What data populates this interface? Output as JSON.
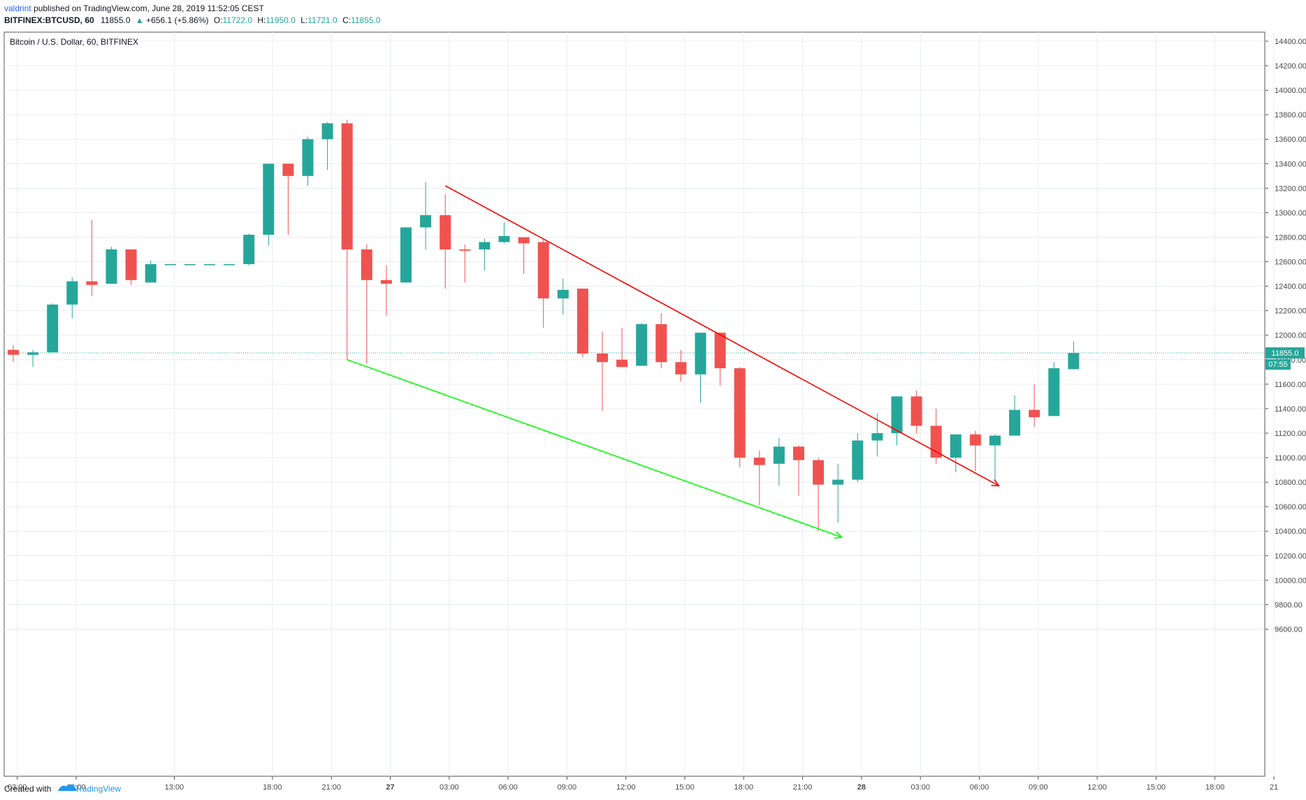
{
  "header": {
    "publisher": "valdrint",
    "published_text": " published on TradingView.com, June 28, 2019 11:52:05 CEST",
    "symbol": "BITFINEX:BTCUSD, 60",
    "last": "11855.0",
    "arrow": "▲",
    "change": "+656.1 (+5.86%)",
    "o_label": "O:",
    "o_value": "11722.0",
    "h_label": "H:",
    "h_value": "11950.0",
    "l_label": "L:",
    "l_value": "11721.0",
    "c_label": "C:",
    "c_value": "11855.0"
  },
  "footer": {
    "created_with": "Created with",
    "brand": "TradingView"
  },
  "colors": {
    "up": "#26a69a",
    "down": "#ef5350",
    "grid": "#e9eef2",
    "price_tag": "#26a69a",
    "red_line": "#ff0000",
    "green_line": "#00ff00",
    "text": "#131722",
    "axis_text": "#4a4a4a",
    "border": "#50535e"
  },
  "chart_data": {
    "type": "candlestick",
    "title": "Bitcoin / U.S. Dollar, 60, BITFINEX",
    "ylim": [
      9500,
      14500
    ],
    "y_ticks": [
      9600,
      9800,
      10000,
      10200,
      10400,
      10600,
      10800,
      11000,
      11200,
      11400,
      11600,
      11800,
      12000,
      12200,
      12400,
      12600,
      12800,
      13000,
      13200,
      13400,
      13600,
      13800,
      14000,
      14200,
      14400
    ],
    "x_ticks": [
      {
        "slot": 0.2,
        "label": "03:00"
      },
      {
        "slot": 3.2,
        "label": "06:00"
      },
      {
        "slot": 8.2,
        "label": "13:00"
      },
      {
        "slot": 13.2,
        "label": "18:00"
      },
      {
        "slot": 16.2,
        "label": "21:00"
      },
      {
        "slot": 19.2,
        "label": "27"
      },
      {
        "slot": 22.2,
        "label": "03:00"
      },
      {
        "slot": 25.2,
        "label": "06:00"
      },
      {
        "slot": 28.2,
        "label": "09:00"
      },
      {
        "slot": 31.2,
        "label": "12:00"
      },
      {
        "slot": 34.2,
        "label": "15:00"
      },
      {
        "slot": 37.2,
        "label": "18:00"
      },
      {
        "slot": 40.2,
        "label": "21:00"
      },
      {
        "slot": 43.2,
        "label": "28"
      },
      {
        "slot": 46.2,
        "label": "03:00"
      },
      {
        "slot": 49.2,
        "label": "06:00"
      },
      {
        "slot": 52.2,
        "label": "09:00"
      },
      {
        "slot": 55.2,
        "label": "12:00"
      },
      {
        "slot": 58.2,
        "label": "15:00"
      },
      {
        "slot": 61.2,
        "label": "18:00"
      },
      {
        "slot": 64.2,
        "label": "21"
      }
    ],
    "candles": [
      {
        "slot": 0,
        "o": 11880,
        "h": 11920,
        "l": 11780,
        "c": 11840
      },
      {
        "slot": 1,
        "o": 11840,
        "h": 11880,
        "l": 11740,
        "c": 11860
      },
      {
        "slot": 2,
        "o": 11860,
        "h": 12260,
        "l": 11860,
        "c": 12250
      },
      {
        "slot": 3,
        "o": 12250,
        "h": 12470,
        "l": 12140,
        "c": 12440
      },
      {
        "slot": 4,
        "o": 12440,
        "h": 12940,
        "l": 12320,
        "c": 12410
      },
      {
        "slot": 5,
        "o": 12420,
        "h": 12720,
        "l": 12420,
        "c": 12700
      },
      {
        "slot": 6,
        "o": 12700,
        "h": 12700,
        "l": 12410,
        "c": 12450
      },
      {
        "slot": 7,
        "o": 12430,
        "h": 12610,
        "l": 12430,
        "c": 12580
      },
      {
        "slot": 8,
        "o": 12580,
        "h": 12580,
        "l": 12580,
        "c": 12580
      },
      {
        "slot": 9,
        "o": 12580,
        "h": 12580,
        "l": 12580,
        "c": 12580
      },
      {
        "slot": 10,
        "o": 12580,
        "h": 12580,
        "l": 12580,
        "c": 12580
      },
      {
        "slot": 11,
        "o": 12580,
        "h": 12580,
        "l": 12580,
        "c": 12580
      },
      {
        "slot": 12,
        "o": 12580,
        "h": 12830,
        "l": 12570,
        "c": 12820
      },
      {
        "slot": 13,
        "o": 12820,
        "h": 13400,
        "l": 12730,
        "c": 13400
      },
      {
        "slot": 14,
        "o": 13400,
        "h": 13400,
        "l": 12820,
        "c": 13300
      },
      {
        "slot": 15,
        "o": 13300,
        "h": 13620,
        "l": 13220,
        "c": 13600
      },
      {
        "slot": 16,
        "o": 13600,
        "h": 13740,
        "l": 13350,
        "c": 13730
      },
      {
        "slot": 17,
        "o": 13730,
        "h": 13760,
        "l": 11800,
        "c": 12700
      },
      {
        "slot": 18,
        "o": 12700,
        "h": 12740,
        "l": 11770,
        "c": 12450
      },
      {
        "slot": 19,
        "o": 12450,
        "h": 12570,
        "l": 12160,
        "c": 12420
      },
      {
        "slot": 20,
        "o": 12430,
        "h": 12880,
        "l": 12430,
        "c": 12880
      },
      {
        "slot": 21,
        "o": 12880,
        "h": 13250,
        "l": 12700,
        "c": 12980
      },
      {
        "slot": 22,
        "o": 12980,
        "h": 13150,
        "l": 12380,
        "c": 12700
      },
      {
        "slot": 23,
        "o": 12700,
        "h": 12740,
        "l": 12430,
        "c": 12690
      },
      {
        "slot": 24,
        "o": 12700,
        "h": 12790,
        "l": 12530,
        "c": 12760
      },
      {
        "slot": 25,
        "o": 12760,
        "h": 12920,
        "l": 12750,
        "c": 12810
      },
      {
        "slot": 26,
        "o": 12800,
        "h": 12800,
        "l": 12500,
        "c": 12750
      },
      {
        "slot": 27,
        "o": 12760,
        "h": 12780,
        "l": 12060,
        "c": 12300
      },
      {
        "slot": 28,
        "o": 12300,
        "h": 12460,
        "l": 12170,
        "c": 12370
      },
      {
        "slot": 29,
        "o": 12380,
        "h": 12380,
        "l": 11820,
        "c": 11850
      },
      {
        "slot": 30,
        "o": 11850,
        "h": 12030,
        "l": 11380,
        "c": 11780
      },
      {
        "slot": 31,
        "o": 11800,
        "h": 12060,
        "l": 11740,
        "c": 11740
      },
      {
        "slot": 32,
        "o": 11750,
        "h": 12100,
        "l": 11750,
        "c": 12090
      },
      {
        "slot": 33,
        "o": 12090,
        "h": 12180,
        "l": 11730,
        "c": 11780
      },
      {
        "slot": 34,
        "o": 11780,
        "h": 11880,
        "l": 11620,
        "c": 11680
      },
      {
        "slot": 35,
        "o": 11680,
        "h": 12020,
        "l": 11450,
        "c": 12020
      },
      {
        "slot": 36,
        "o": 12020,
        "h": 12020,
        "l": 11590,
        "c": 11730
      },
      {
        "slot": 37,
        "o": 11730,
        "h": 11740,
        "l": 10920,
        "c": 11000
      },
      {
        "slot": 38,
        "o": 11000,
        "h": 11060,
        "l": 10610,
        "c": 10940
      },
      {
        "slot": 39,
        "o": 10950,
        "h": 11160,
        "l": 10770,
        "c": 11090
      },
      {
        "slot": 40,
        "o": 11090,
        "h": 11100,
        "l": 10690,
        "c": 10980
      },
      {
        "slot": 41,
        "o": 10980,
        "h": 11000,
        "l": 10400,
        "c": 10780
      },
      {
        "slot": 42,
        "o": 10780,
        "h": 10950,
        "l": 10470,
        "c": 10820
      },
      {
        "slot": 43,
        "o": 10820,
        "h": 11200,
        "l": 10800,
        "c": 11140
      },
      {
        "slot": 44,
        "o": 11140,
        "h": 11360,
        "l": 11010,
        "c": 11200
      },
      {
        "slot": 45,
        "o": 11200,
        "h": 11500,
        "l": 11100,
        "c": 11500
      },
      {
        "slot": 46,
        "o": 11500,
        "h": 11550,
        "l": 11200,
        "c": 11260
      },
      {
        "slot": 47,
        "o": 11260,
        "h": 11400,
        "l": 10950,
        "c": 11000
      },
      {
        "slot": 48,
        "o": 11000,
        "h": 11190,
        "l": 10880,
        "c": 11190
      },
      {
        "slot": 49,
        "o": 11190,
        "h": 11220,
        "l": 10890,
        "c": 11100
      },
      {
        "slot": 50,
        "o": 11100,
        "h": 11190,
        "l": 10800,
        "c": 11180
      },
      {
        "slot": 51,
        "o": 11180,
        "h": 11510,
        "l": 11180,
        "c": 11390
      },
      {
        "slot": 52,
        "o": 11390,
        "h": 11600,
        "l": 11250,
        "c": 11330
      },
      {
        "slot": 53,
        "o": 11340,
        "h": 11780,
        "l": 11340,
        "c": 11730
      },
      {
        "slot": 54,
        "o": 11722,
        "h": 11950,
        "l": 11721,
        "c": 11855
      }
    ],
    "price_label": "11855.0",
    "time_label": "07:55",
    "last_price": 11855,
    "trendlines": [
      {
        "name": "red",
        "from": {
          "slot": 22.0,
          "price": 13220
        },
        "to": {
          "slot": 50.2,
          "price": 10770
        }
      },
      {
        "name": "green",
        "from": {
          "slot": 17.0,
          "price": 11800
        },
        "to": {
          "slot": 42.2,
          "price": 10350
        }
      }
    ]
  }
}
